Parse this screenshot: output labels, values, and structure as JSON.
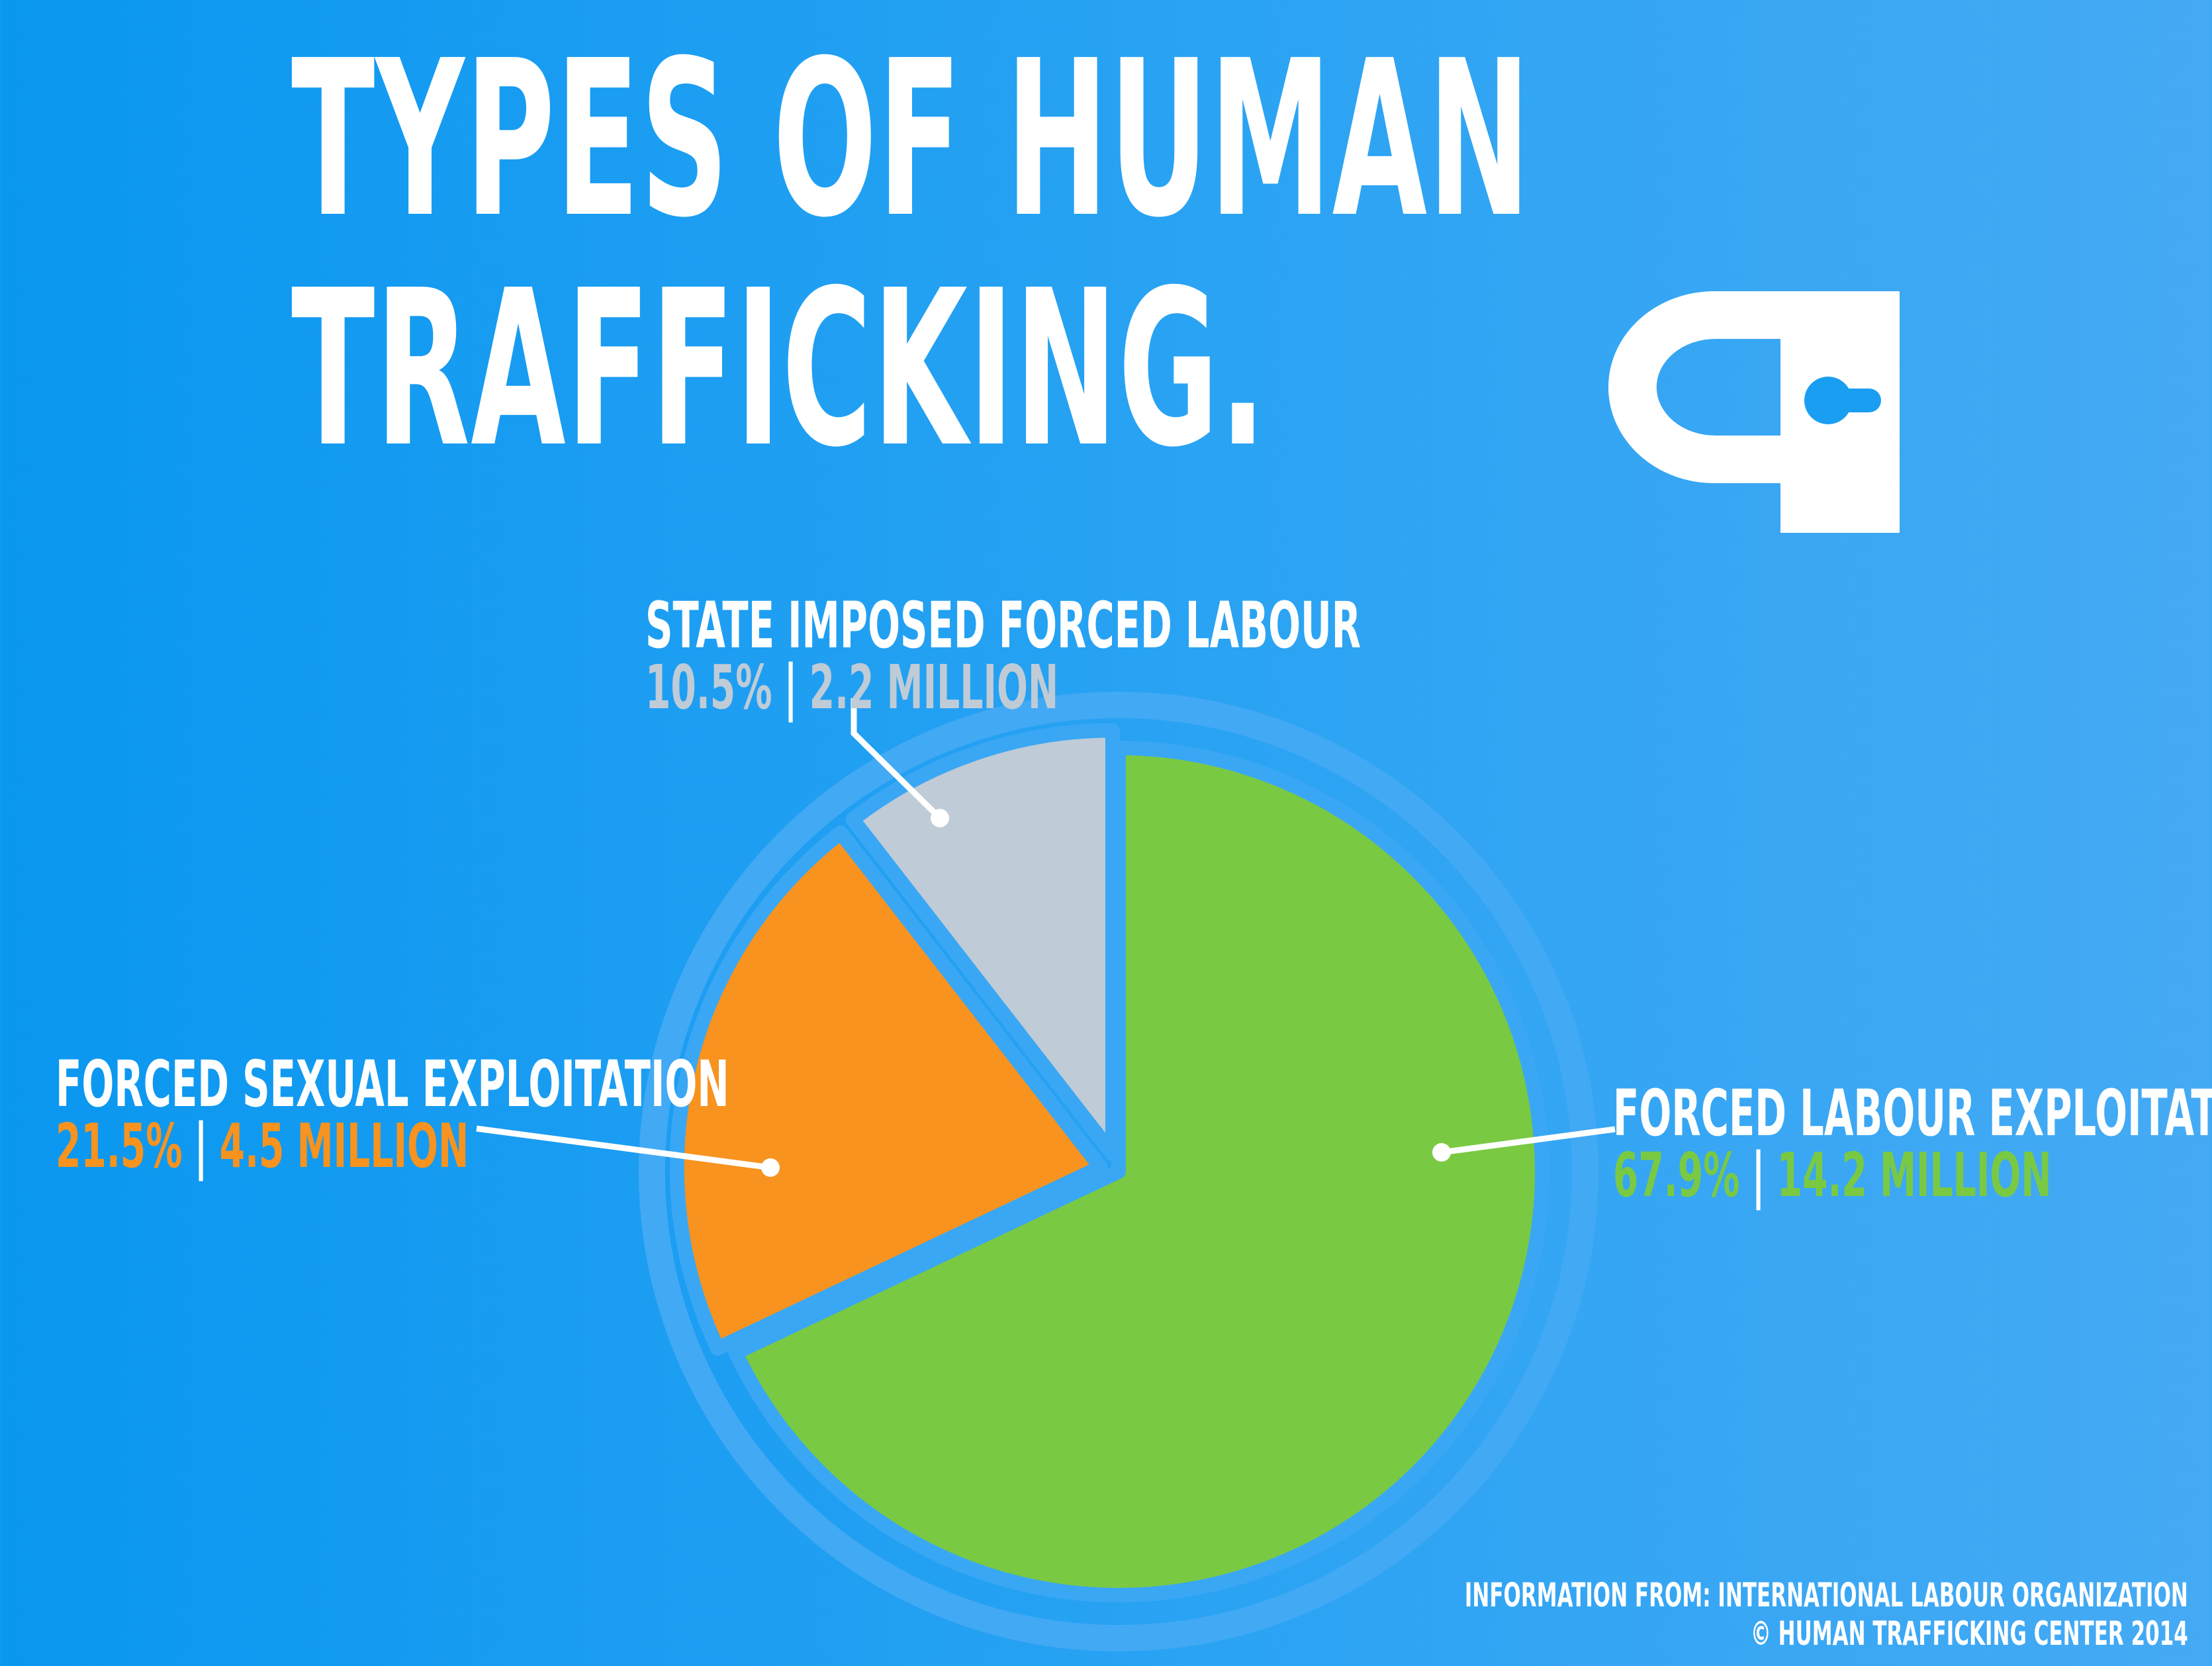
{
  "header": {
    "title_line1": "TYPES OF HUMAN",
    "title_line2": "TRAFFICKING."
  },
  "chart_data": {
    "type": "pie",
    "title": "TYPES OF HUMAN TRAFFICKING.",
    "slices": [
      {
        "label": "FORCED LABOUR EXPLOITATION",
        "percent": 67.9,
        "percent_text": "67.9%",
        "amount_text": "14.2 MILLION",
        "color": "#7ac943"
      },
      {
        "label": "FORCED SEXUAL EXPLOITATION",
        "percent": 21.5,
        "percent_text": "21.5%",
        "amount_text": "4.5 MILLION",
        "color": "#f7931e"
      },
      {
        "label": "STATE IMPOSED FORCED LABOUR",
        "percent": 10.5,
        "percent_text": "10.5%",
        "amount_text": "2.2 MILLION",
        "color": "#bfcbd6"
      }
    ],
    "ring_color": "#42a9f5",
    "separator": "|"
  },
  "footer": {
    "source": "INFORMATION FROM: INTERNATIONAL LABOUR ORGANIZATION",
    "copyright": "© HUMAN TRAFFICKING CENTER 2014"
  }
}
